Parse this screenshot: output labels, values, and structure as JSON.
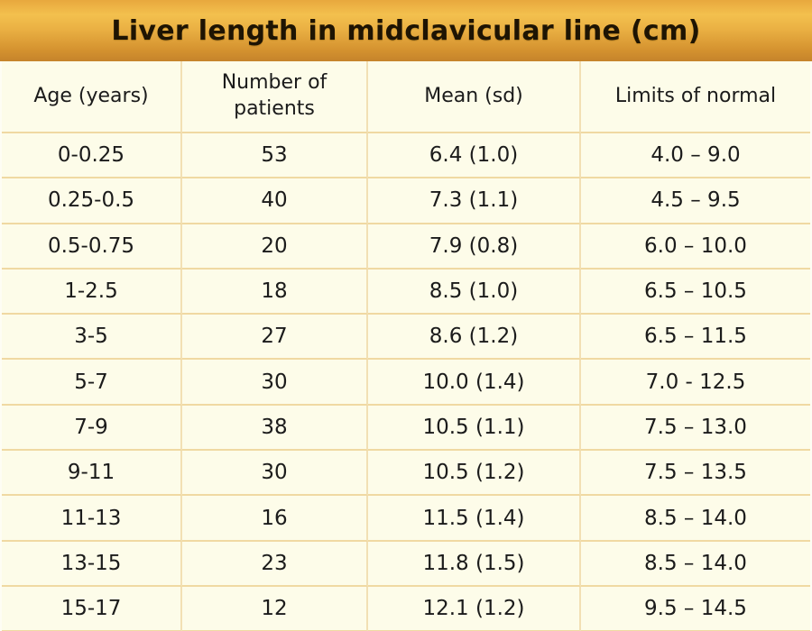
{
  "chart_data": {
    "type": "table",
    "title": "Liver length in midclavicular line (cm)",
    "columns": [
      "Age (years)",
      "Number of patients",
      "Mean (sd)",
      "Limits of normal"
    ],
    "rows": [
      [
        "0-0.25",
        "53",
        "6.4 (1.0)",
        "4.0 – 9.0"
      ],
      [
        "0.25-0.5",
        "40",
        "7.3 (1.1)",
        "4.5 – 9.5"
      ],
      [
        "0.5-0.75",
        "20",
        "7.9 (0.8)",
        "6.0 – 10.0"
      ],
      [
        "1-2.5",
        "18",
        "8.5 (1.0)",
        "6.5 – 10.5"
      ],
      [
        "3-5",
        "27",
        "8.6 (1.2)",
        "6.5 – 11.5"
      ],
      [
        "5-7",
        "30",
        "10.0 (1.4)",
        "7.0 - 12.5"
      ],
      [
        "7-9",
        "38",
        "10.5 (1.1)",
        "7.5 – 13.0"
      ],
      [
        "9-11",
        "30",
        "10.5 (1.2)",
        "7.5 – 13.5"
      ],
      [
        "11-13",
        "16",
        "11.5 (1.4)",
        "8.5 – 14.0"
      ],
      [
        "13-15",
        "23",
        "11.8 (1.5)",
        "8.5 – 14.0"
      ],
      [
        "15-17",
        "12",
        "12.1 (1.2)",
        "9.5 – 14.5"
      ]
    ],
    "layout_hints": {
      "grid": "on",
      "header_row": true,
      "title_position": "top-banner"
    }
  },
  "colors": {
    "title_bar_gradient_top": "#e8a83d",
    "title_bar_gradient_mid": "#f3c04e",
    "title_bar_gradient_bottom": "#c5832b",
    "row_background": "#fdfce9",
    "grid_line_horizontal": "#f0d9a2",
    "grid_line_vertical": "#f2e0b4",
    "title_text": "#1e1403",
    "body_text": "#1b1b1b"
  }
}
